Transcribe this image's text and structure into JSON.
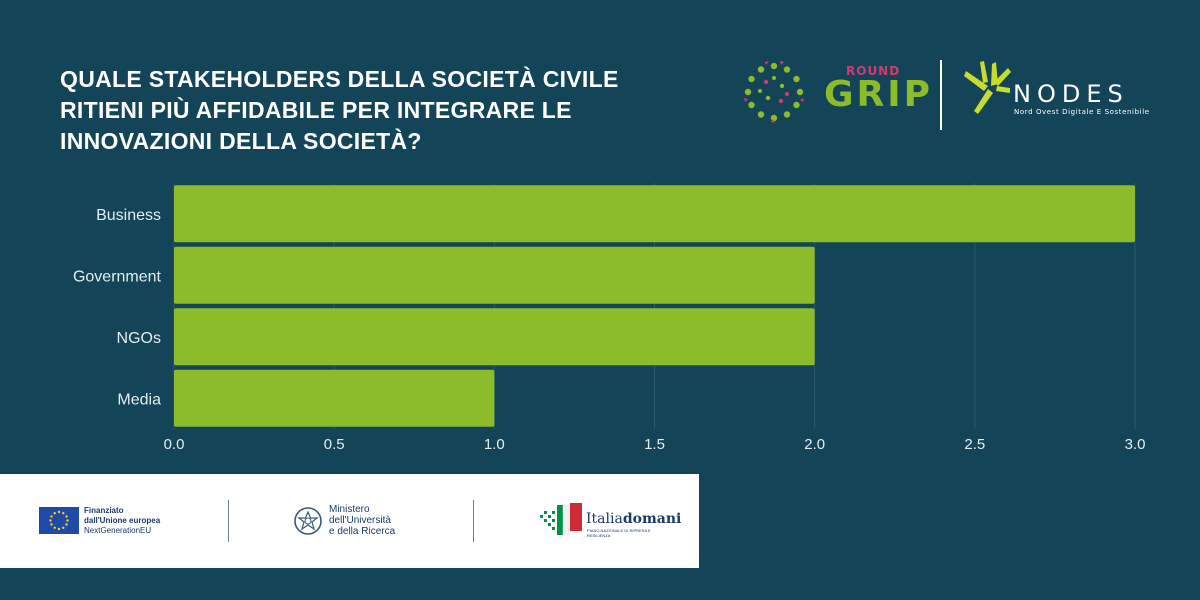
{
  "title_lines": [
    "QUALE STAKEHOLDERS DELLA SOCIETÀ CIVILE",
    "RITIENI PIÙ AFFIDABILE PER INTEGRARE LE",
    "INNOVAZIONI DELLA SOCIETÀ?"
  ],
  "logos": {
    "grip_round": "ROUND",
    "grip_word": "GRIP",
    "nodes_word": "NODES",
    "nodes_sub": "Nord Ovest Digitale E Sostenibile"
  },
  "footer": {
    "eu_line1": "Finanziato",
    "eu_line2": "dall'Unione europea",
    "eu_line3": "NextGenerationEU",
    "mur_line1": "Ministero",
    "mur_line2": "dell'Università",
    "mur_line3": "e della Ricerca",
    "italia_prefix": "Italia",
    "italia_suffix": "domani",
    "italia_sub": "PIANO NAZIONALE DI RIPRESA E RESILIENZA"
  },
  "colors": {
    "background": "#134457",
    "bar": "#8cbc29",
    "grid": "#2c5a6a",
    "text": "#e4edf1"
  },
  "chart_data": {
    "type": "bar",
    "orientation": "horizontal",
    "title": "QUALE STAKEHOLDERS DELLA SOCIETÀ CIVILE RITIENI PIÙ AFFIDABILE PER INTEGRARE LE INNOVAZIONI DELLA SOCIETÀ?",
    "categories": [
      "Business",
      "Government",
      "NGOs",
      "Media"
    ],
    "values": [
      3,
      2,
      2,
      1
    ],
    "xlim": [
      0,
      3
    ],
    "ticks": [
      "0.0",
      "0.5",
      "1.0",
      "1.5",
      "2.0",
      "2.5",
      "3.0"
    ],
    "tick_values": [
      0,
      0.5,
      1,
      1.5,
      2,
      2.5,
      3
    ],
    "grid": true,
    "xlabel": "",
    "ylabel": ""
  }
}
